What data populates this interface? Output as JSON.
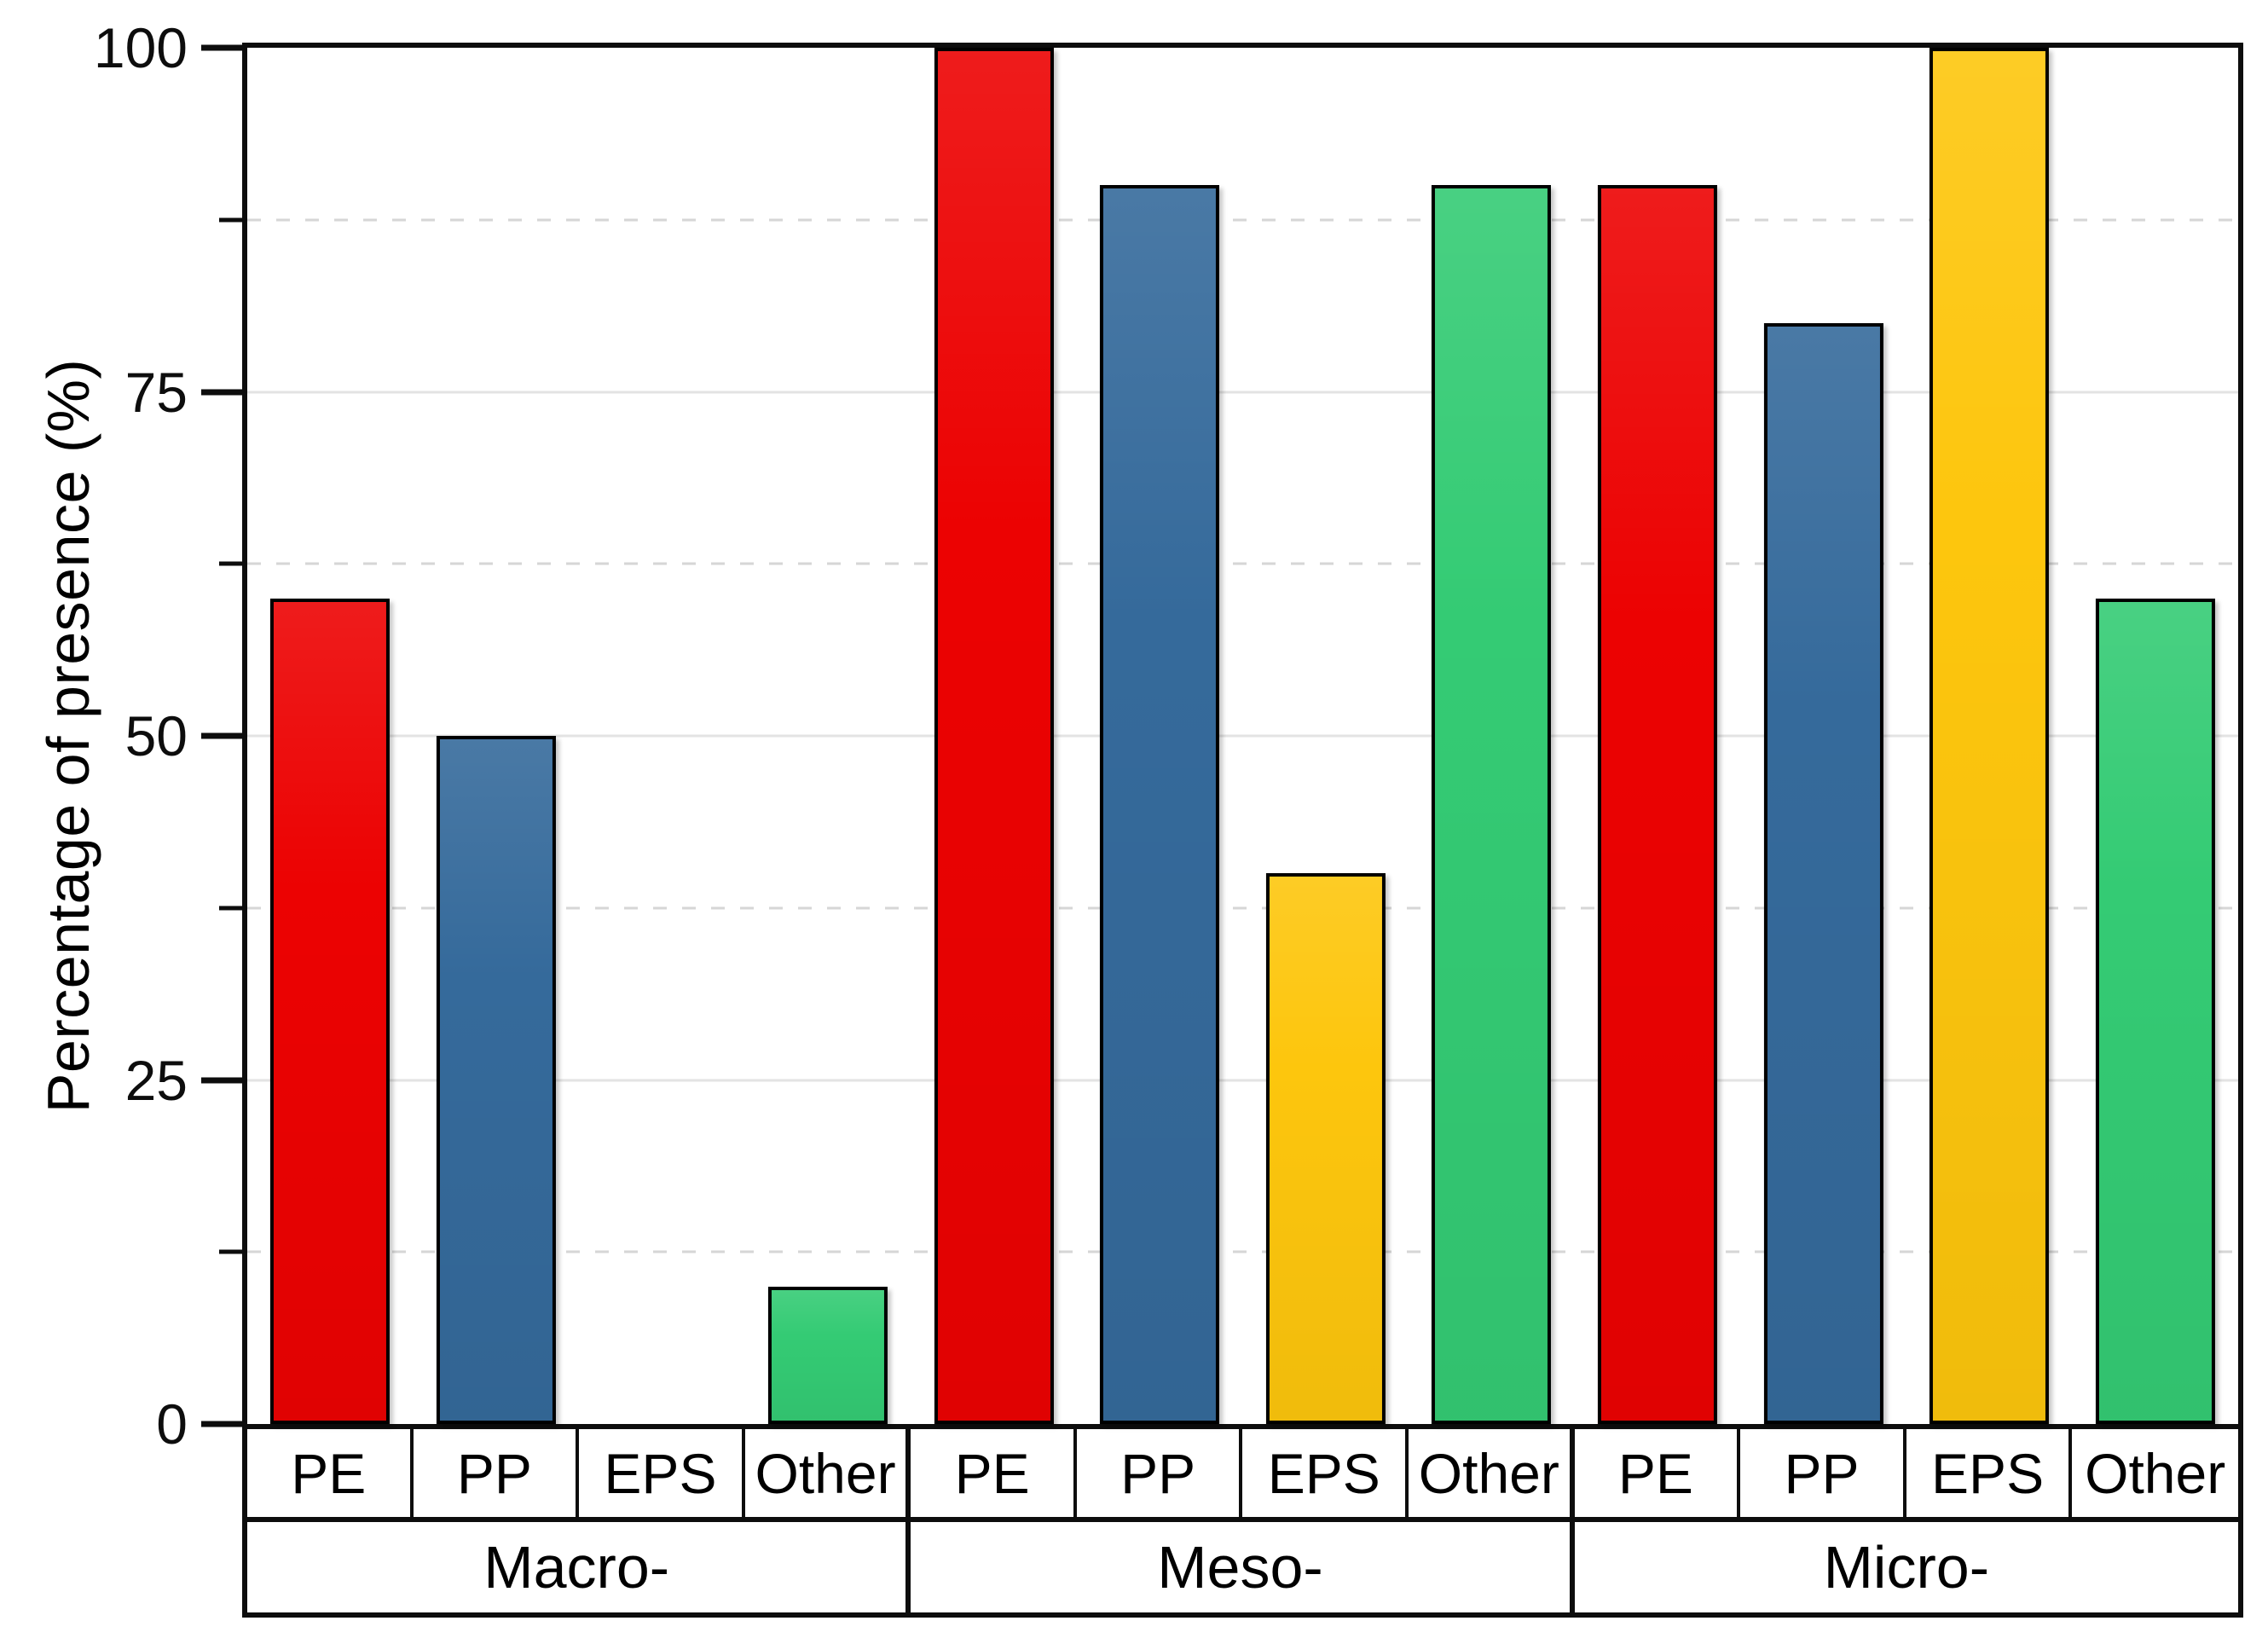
{
  "chart_data": {
    "type": "bar",
    "title": "",
    "ylabel": "Percentage of presence (%)",
    "xlabel": "",
    "ylim": [
      0,
      100
    ],
    "yticks_major": [
      0,
      25,
      50,
      75,
      100
    ],
    "yticks_minor": [
      12.5,
      37.5,
      62.5,
      87.5
    ],
    "grid": {
      "major_style": "solid",
      "minor_style": "dashed",
      "major_color": "#e3e3e3",
      "minor_color": "#d6d6d6"
    },
    "frame_color": "#0d0d0d",
    "background_color": "#ffffff",
    "legend_position": "none",
    "categories": [
      "PE",
      "PP",
      "EPS",
      "Other"
    ],
    "groups": [
      "Macro-",
      "Meso-",
      "Micro-"
    ],
    "series": [
      {
        "group": "Macro-",
        "values": [
          60,
          50,
          0,
          10
        ]
      },
      {
        "group": "Meso-",
        "values": [
          100,
          90,
          40,
          90
        ]
      },
      {
        "group": "Micro-",
        "values": [
          90,
          80,
          100,
          60
        ]
      }
    ],
    "bar_colors": {
      "PE": "#ec0202",
      "PP": "#356a9b",
      "EPS": "#fdc60d",
      "Other": "#34cb74"
    },
    "bar_outline_color": "#000000"
  }
}
